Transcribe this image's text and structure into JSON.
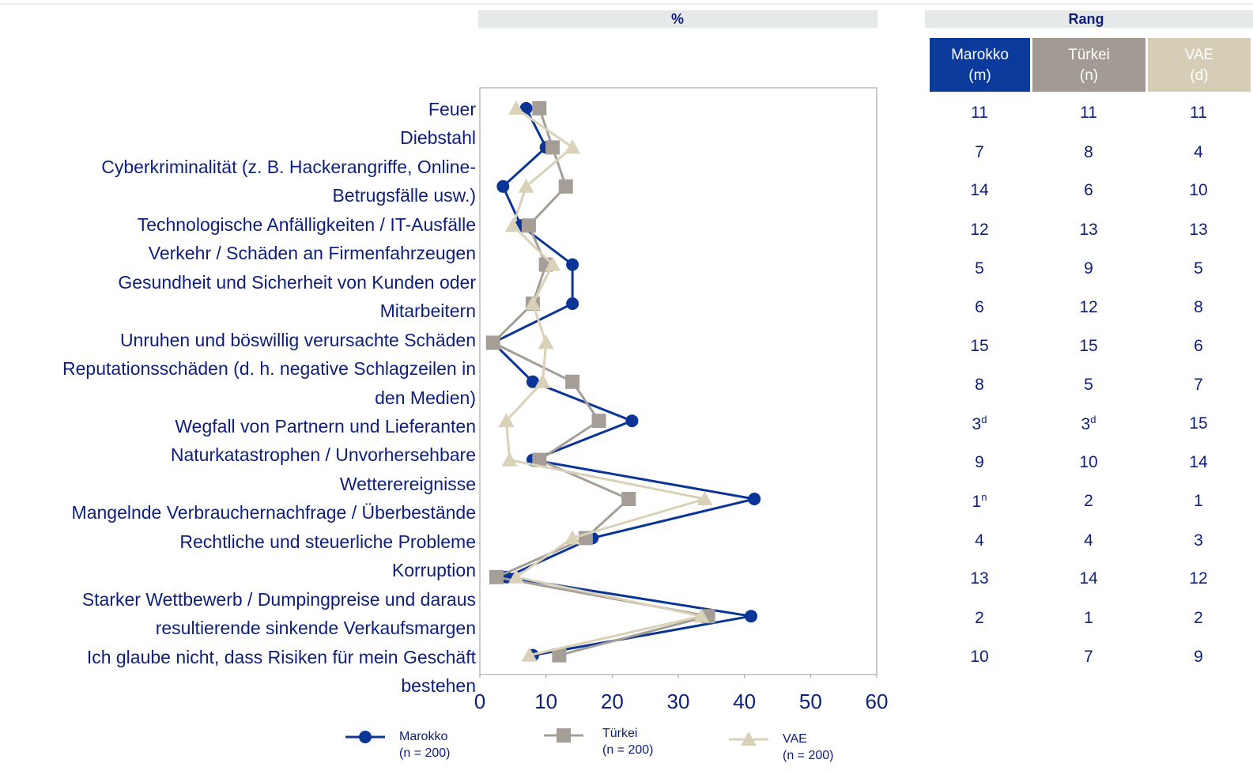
{
  "chart_data": {
    "type": "line",
    "orientation": "horizontal",
    "header": "%",
    "categories": [
      "Feuer",
      "Diebstahl",
      "Cyberkriminalität (z. B. Hackerangriffe, Online-\nBetrugsfälle usw.)",
      "Technologische Anfälligkeiten / IT-Ausfälle",
      "Verkehr / Schäden an Firmenfahrzeugen",
      "Gesundheit und Sicherheit von Kunden oder\nMitarbeitern",
      "Unruhen und böswillig verursachte Schäden",
      "Reputationsschäden (d. h. negative Schlagzeilen in\nden Medien)",
      "Wegfall von Partnern und Lieferanten",
      "Naturkatastrophen / Unvorhersehbare\nWetterereignisse",
      "Mangelnde Verbrauchernachfrage / Überbestände",
      "Rechtliche und steuerliche Probleme",
      "Korruption",
      "Starker Wettbewerb / Dumpingpreise und daraus\nresultierende sinkende Verkaufsmargen",
      "Ich glaube nicht, dass Risiken für mein Geschäft\nbestehen"
    ],
    "series": [
      {
        "name": "Marokko\n(n = 200)",
        "color": "#0a3596",
        "marker": "circle",
        "values": [
          7,
          10,
          3.5,
          6.2,
          14,
          14,
          2,
          8,
          23,
          8,
          41.5,
          17,
          4,
          41,
          8
        ]
      },
      {
        "name": "Türkei\n(n = 200)",
        "color": "#a59e96",
        "marker": "square",
        "values": [
          9,
          11,
          13,
          7.4,
          10,
          8,
          2,
          14,
          18,
          9,
          22.5,
          16,
          2.5,
          34.5,
          12
        ]
      },
      {
        "name": "VAE\n(n = 200)",
        "color": "#d9d1b8",
        "marker": "triangle",
        "values": [
          5.5,
          14,
          7,
          5,
          11,
          8,
          10,
          9.5,
          4,
          4.5,
          34,
          14,
          5.5,
          33.5,
          7.5
        ]
      }
    ],
    "xlim": [
      0,
      60
    ],
    "xticks": [
      0,
      10,
      20,
      30,
      40,
      50,
      60
    ]
  },
  "rank_table": {
    "title": "Rang",
    "columns": [
      "Marokko\n(m)",
      "Türkei\n(n)",
      "VAE\n(d)"
    ],
    "column_colors": [
      "#0a3a9c",
      "#a39b93",
      "#d5cdb5"
    ],
    "rows": [
      [
        "11",
        "11",
        "11"
      ],
      [
        "7",
        "8",
        "4"
      ],
      [
        "14",
        "6",
        "10"
      ],
      [
        "12",
        "13",
        "13"
      ],
      [
        "5",
        "9",
        "5"
      ],
      [
        "6",
        "12",
        "8"
      ],
      [
        "15",
        "15",
        "6"
      ],
      [
        "8",
        "5",
        "7"
      ],
      [
        {
          "text": "3",
          "sup": "d"
        },
        {
          "text": "3",
          "sup": "d"
        },
        "15"
      ],
      [
        "9",
        "10",
        "14"
      ],
      [
        {
          "text": "1",
          "sup": "n"
        },
        "2",
        "1"
      ],
      [
        "4",
        "4",
        "3"
      ],
      [
        "13",
        "14",
        "12"
      ],
      [
        "2",
        "1",
        "2"
      ],
      [
        "10",
        "7",
        "9"
      ]
    ]
  }
}
